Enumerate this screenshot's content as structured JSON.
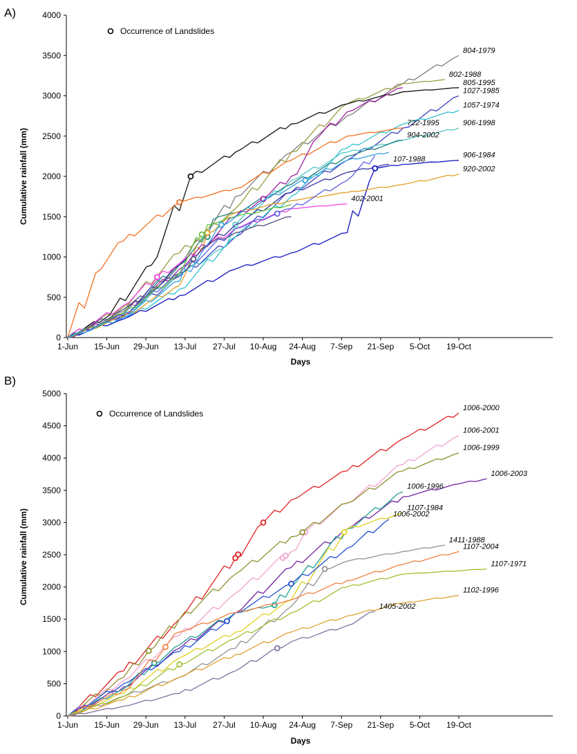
{
  "chart_data": [
    {
      "type": "line",
      "panel_label": "A)",
      "xlabel": "Days",
      "ylabel": "Cumulative rainfall (mm)",
      "x_ticks": [
        "1-Jun",
        "15-Jun",
        "29-Jun",
        "13-Jul",
        "27-Jul",
        "10-Aug",
        "24-Aug",
        "7-Sep",
        "21-Sep",
        "5-Oct",
        "19-Oct"
      ],
      "ylim": [
        0,
        4000
      ],
      "y_ticks": [
        0,
        500,
        1000,
        1500,
        2000,
        2500,
        3000,
        3500,
        4000
      ],
      "legend": "Occurrence of Landslides",
      "legend_position": "top-left",
      "series": [
        {
          "name": "804-1979",
          "color": "#808080",
          "x": [
            0,
            20,
            40,
            60,
            80,
            100,
            120,
            140
          ],
          "values": [
            0,
            320,
            900,
            1750,
            2300,
            2750,
            3150,
            3500
          ],
          "landslides": []
        },
        {
          "name": "802-1988",
          "color": "#9a9a40",
          "x": [
            0,
            20,
            40,
            60,
            80,
            100,
            120,
            135
          ],
          "values": [
            0,
            380,
            1050,
            1600,
            2300,
            2900,
            3150,
            3200
          ],
          "landslides": []
        },
        {
          "name": "805-1995",
          "color": "#101010",
          "x": [
            0,
            15,
            30,
            44,
            60,
            80,
            100,
            120,
            140
          ],
          "values": [
            0,
            280,
            900,
            2000,
            2300,
            2650,
            2900,
            3050,
            3100
          ],
          "landslides": [
            44
          ]
        },
        {
          "name": "1027-1985",
          "color": "#4040c0",
          "x": [
            0,
            20,
            40,
            60,
            80,
            100,
            120,
            140
          ],
          "values": [
            0,
            260,
            760,
            1250,
            1800,
            2200,
            2600,
            3000
          ],
          "landslides": []
        },
        {
          "name": "1057-1974",
          "color": "#30c0d0",
          "x": [
            0,
            20,
            40,
            60,
            80,
            100,
            120,
            140
          ],
          "values": [
            0,
            230,
            600,
            1250,
            1750,
            2350,
            2650,
            2820
          ],
          "landslides": []
        },
        {
          "name": "906-1998",
          "color": "#50c8c8",
          "x": [
            0,
            20,
            40,
            55,
            60,
            80,
            100,
            120,
            140
          ],
          "values": [
            0,
            280,
            780,
            1100,
            1400,
            1950,
            2300,
            2450,
            2600
          ],
          "landslides": [
            60
          ]
        },
        {
          "name": "722-1995",
          "color": "#f07020",
          "x": [
            0,
            10,
            20,
            40,
            60,
            80,
            100,
            120
          ],
          "values": [
            0,
            800,
            1200,
            1680,
            1850,
            2200,
            2500,
            2600
          ],
          "landslides": [
            40
          ]
        },
        {
          "name": "904-2002",
          "color": "#208080",
          "x": [
            0,
            20,
            40,
            50,
            54,
            60,
            80,
            100,
            120
          ],
          "values": [
            0,
            300,
            900,
            1250,
            1500,
            1550,
            1900,
            2250,
            2450
          ],
          "landslides": [
            50
          ]
        },
        {
          "name": "107-1988",
          "color": "#3030a0",
          "x": [
            0,
            20,
            40,
            60,
            80,
            100,
            115
          ],
          "values": [
            0,
            280,
            900,
            1400,
            1800,
            2050,
            2150
          ],
          "landslides": []
        },
        {
          "name": "906-1984",
          "color": "#1010c0",
          "x": [
            0,
            20,
            40,
            60,
            80,
            100,
            110,
            120,
            140
          ],
          "values": [
            0,
            230,
            520,
            850,
            1050,
            1300,
            2100,
            2150,
            2200
          ],
          "landslides": [
            110
          ]
        },
        {
          "name": "920-2002",
          "color": "#e0a020",
          "x": [
            0,
            20,
            40,
            50,
            60,
            80,
            100,
            120,
            140
          ],
          "values": [
            0,
            260,
            650,
            1300,
            1550,
            1700,
            1800,
            1900,
            2030
          ],
          "landslides": [
            50
          ]
        },
        {
          "name": "402-2001",
          "color": "#f040e0",
          "x": [
            0,
            20,
            32,
            60,
            80,
            100
          ],
          "values": [
            0,
            400,
            750,
            1350,
            1600,
            1660
          ],
          "landslides": [
            32
          ]
        },
        {
          "name": "",
          "color": "#a020a0",
          "x": [
            0,
            20,
            40,
            60,
            70,
            80,
            90,
            100,
            120
          ],
          "values": [
            0,
            300,
            850,
            1500,
            1720,
            2000,
            2500,
            2800,
            3100
          ],
          "landslides": [
            70
          ]
        },
        {
          "name": "",
          "color": "#6060e0",
          "x": [
            0,
            20,
            40,
            60,
            80,
            100,
            110
          ],
          "values": [
            0,
            300,
            800,
            1350,
            1600,
            1950,
            2260
          ],
          "landslides": [
            75
          ]
        },
        {
          "name": "",
          "color": "#505080",
          "x": [
            0,
            20,
            40,
            50,
            60,
            80
          ],
          "values": [
            0,
            350,
            800,
            1150,
            1300,
            1500
          ],
          "landslides": [
            45
          ]
        },
        {
          "name": "",
          "color": "#60c040",
          "x": [
            0,
            20,
            40,
            50,
            60,
            80
          ],
          "values": [
            0,
            300,
            800,
            1400,
            1500,
            1650
          ],
          "landslides": [
            48
          ]
        },
        {
          "name": "",
          "color": "#30a0e0",
          "x": [
            0,
            20,
            40,
            50,
            55,
            70,
            85,
            100,
            115
          ],
          "values": [
            0,
            250,
            700,
            1150,
            1400,
            1700,
            1950,
            2200,
            2300
          ],
          "landslides": [
            55,
            85
          ]
        }
      ]
    },
    {
      "type": "line",
      "panel_label": "B)",
      "xlabel": "Days",
      "ylabel": "Cumulative rainfall (mm)",
      "x_ticks": [
        "1-Jun",
        "15-Jun",
        "29-Jun",
        "13-Jul",
        "27-Jul",
        "10-Aug",
        "24-Aug",
        "7-Sep",
        "21-Sep",
        "5-Oct",
        "19-Oct"
      ],
      "ylim": [
        0,
        5000
      ],
      "y_ticks": [
        0,
        500,
        1000,
        1500,
        2000,
        2500,
        3000,
        3500,
        4000,
        4500,
        5000
      ],
      "legend": "Occurrence of Landslides",
      "legend_position": "top-left",
      "series": [
        {
          "name": "1006-2000",
          "color": "#e02020",
          "x": [
            0,
            20,
            40,
            60,
            70,
            80,
            100,
            120,
            140
          ],
          "values": [
            0,
            700,
            1500,
            2450,
            3000,
            3350,
            3800,
            4300,
            4700
          ],
          "landslides": [
            60,
            61,
            70
          ]
        },
        {
          "name": "1006-2001",
          "color": "#f0a0d0",
          "x": [
            0,
            20,
            40,
            60,
            80,
            85,
            100,
            120,
            140
          ],
          "values": [
            0,
            550,
            1250,
            1900,
            2550,
            2850,
            3300,
            3900,
            4350
          ],
          "landslides": [
            77,
            78,
            85
          ]
        },
        {
          "name": "1006-1999",
          "color": "#909030",
          "x": [
            0,
            20,
            29,
            40,
            60,
            80,
            84,
            100,
            120,
            140
          ],
          "values": [
            0,
            600,
            1010,
            1500,
            2200,
            2780,
            2850,
            3300,
            3800,
            4080
          ],
          "landslides": [
            29,
            84
          ]
        },
        {
          "name": "1006-2003",
          "color": "#7020a0",
          "x": [
            0,
            20,
            40,
            60,
            80,
            100,
            120,
            140,
            150
          ],
          "values": [
            0,
            450,
            1050,
            1600,
            2300,
            2900,
            3400,
            3600,
            3680
          ],
          "landslides": []
        },
        {
          "name": "1006-1996",
          "color": "#20a090",
          "x": [
            0,
            20,
            31,
            40,
            60,
            74,
            80,
            100,
            120
          ],
          "values": [
            0,
            420,
            820,
            1100,
            1600,
            1720,
            2000,
            2900,
            3480
          ],
          "landslides": [
            31,
            74
          ]
        },
        {
          "name": "1107-1984",
          "color": "#e0d020",
          "x": [
            0,
            20,
            40,
            60,
            80,
            99,
            100,
            120
          ],
          "values": [
            0,
            350,
            900,
            1300,
            1800,
            2850,
            2900,
            3150
          ],
          "landslides": [
            99
          ]
        },
        {
          "name": "1006-2002",
          "color": "#2050d0",
          "x": [
            0,
            20,
            40,
            57,
            60,
            80,
            100,
            115
          ],
          "values": [
            0,
            500,
            1000,
            1470,
            1600,
            2050,
            2600,
            3050
          ],
          "landslides": [
            57,
            80
          ]
        },
        {
          "name": "1411-1988",
          "color": "#909090",
          "x": [
            0,
            20,
            40,
            60,
            80,
            92,
            100,
            120,
            135
          ],
          "values": [
            0,
            300,
            600,
            1050,
            1700,
            2280,
            2400,
            2550,
            2650
          ],
          "landslides": [
            92
          ]
        },
        {
          "name": "1107-2004",
          "color": "#f08040",
          "x": [
            0,
            20,
            35,
            40,
            60,
            80,
            100,
            120,
            140
          ],
          "values": [
            0,
            400,
            1070,
            1300,
            1600,
            1800,
            2100,
            2350,
            2550
          ],
          "landslides": [
            35
          ]
        },
        {
          "name": "1107-1971",
          "color": "#a0c030",
          "x": [
            0,
            20,
            40,
            60,
            80,
            100,
            120,
            150
          ],
          "values": [
            0,
            300,
            800,
            1200,
            1600,
            2000,
            2200,
            2280
          ],
          "landslides": [
            40
          ]
        },
        {
          "name": "1102-1996",
          "color": "#e0a030",
          "x": [
            0,
            20,
            40,
            60,
            80,
            100,
            120,
            140
          ],
          "values": [
            0,
            250,
            600,
            950,
            1300,
            1550,
            1750,
            1870
          ],
          "landslides": []
        },
        {
          "name": "1405-2002",
          "color": "#8070a0",
          "x": [
            0,
            20,
            40,
            60,
            75,
            80,
            100,
            110
          ],
          "values": [
            0,
            150,
            350,
            700,
            1050,
            1150,
            1400,
            1620
          ],
          "landslides": [
            75
          ]
        }
      ]
    }
  ]
}
